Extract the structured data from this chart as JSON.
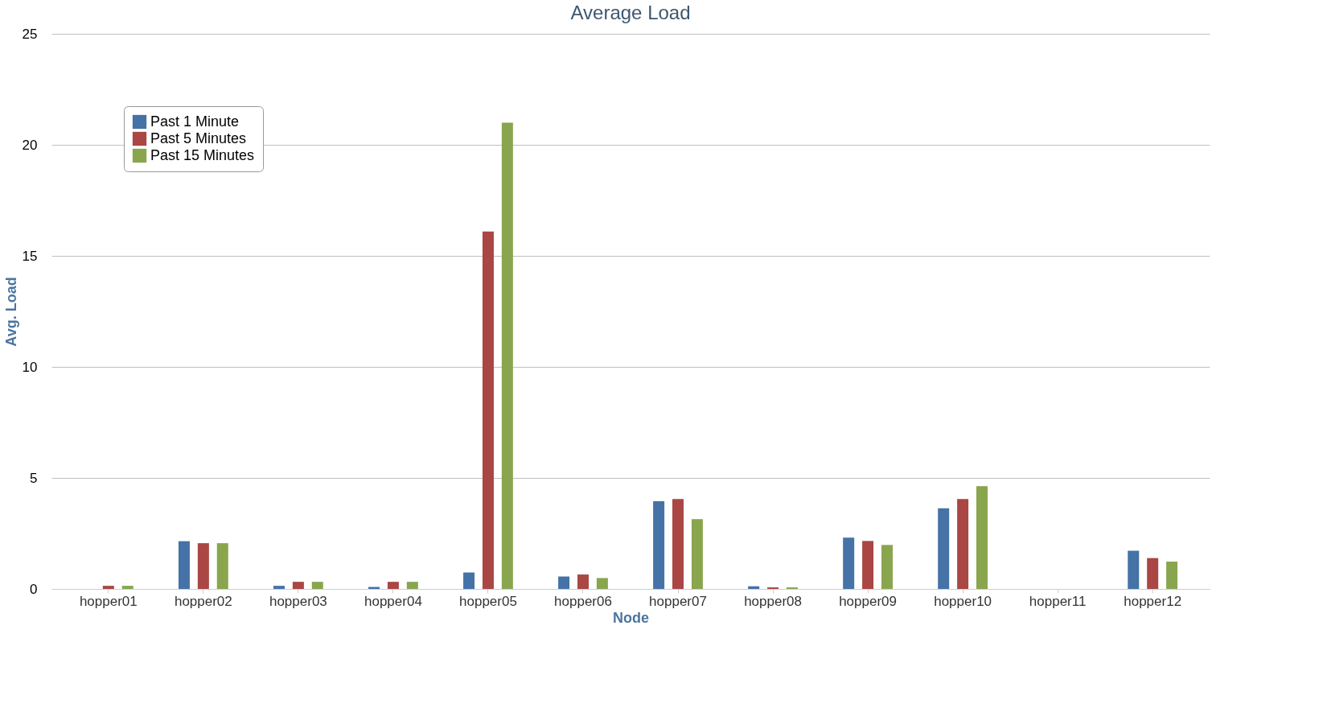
{
  "chart_data": {
    "type": "bar",
    "title": "Average Load",
    "xlabel": "Node",
    "ylabel": "Avg. Load",
    "categories": [
      "hopper01",
      "hopper02",
      "hopper03",
      "hopper04",
      "hopper05",
      "hopper06",
      "hopper07",
      "hopper08",
      "hopper09",
      "hopper10",
      "hopper11",
      "hopper12"
    ],
    "series": [
      {
        "name": "Past 1 Minute",
        "color": "#4572a7",
        "values": [
          0,
          2.15,
          0.14,
          0.09,
          0.74,
          0.56,
          3.95,
          0.12,
          2.31,
          3.63,
          0,
          1.72
        ]
      },
      {
        "name": "Past 5 Minutes",
        "color": "#aa4643",
        "values": [
          0.14,
          2.06,
          0.32,
          0.32,
          16.1,
          0.65,
          4.05,
          0.07,
          2.16,
          4.05,
          0,
          1.39
        ]
      },
      {
        "name": "Past 15 Minutes",
        "color": "#89a54e",
        "values": [
          0.14,
          2.06,
          0.32,
          0.32,
          21.0,
          0.49,
          3.14,
          0.07,
          1.98,
          4.63,
          0,
          1.23
        ]
      }
    ],
    "ylim": [
      0,
      25
    ],
    "yticks": [
      0,
      5,
      10,
      15,
      20,
      25
    ],
    "grid": "y",
    "legend": "top left"
  }
}
